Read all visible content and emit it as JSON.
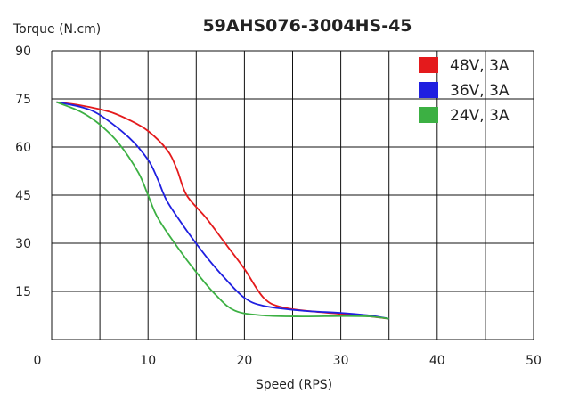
{
  "chart_data": {
    "type": "line",
    "title": "59AHS076-3004HS-45",
    "xlabel": "Speed (RPS)",
    "ylabel": "Torque (N.cm)",
    "xlim": [
      0,
      50
    ],
    "ylim": [
      0,
      90
    ],
    "x_ticks": [
      0,
      10,
      20,
      30,
      40,
      50
    ],
    "y_ticks": [
      15,
      30,
      45,
      60,
      75,
      90
    ],
    "grid": true,
    "legend_position": "top-right",
    "series": [
      {
        "name": "48V, 3A",
        "color": "#e41a1c",
        "points": [
          [
            0.5,
            74
          ],
          [
            3,
            73
          ],
          [
            6,
            71
          ],
          [
            8,
            68.5
          ],
          [
            10,
            65
          ],
          [
            12,
            59
          ],
          [
            13,
            53
          ],
          [
            14,
            45
          ],
          [
            16,
            38
          ],
          [
            18,
            30
          ],
          [
            20,
            22
          ],
          [
            22,
            13
          ],
          [
            24,
            10
          ],
          [
            28,
            8.5
          ],
          [
            32,
            7.5
          ],
          [
            35,
            6.5
          ]
        ]
      },
      {
        "name": "36V, 3A",
        "color": "#1f1fe0",
        "points": [
          [
            0.5,
            74
          ],
          [
            3,
            72.5
          ],
          [
            5,
            70
          ],
          [
            8,
            63
          ],
          [
            10,
            56
          ],
          [
            11,
            50
          ],
          [
            12,
            43
          ],
          [
            14,
            34
          ],
          [
            16,
            26
          ],
          [
            18,
            19
          ],
          [
            20,
            13
          ],
          [
            22,
            10.5
          ],
          [
            26,
            9
          ],
          [
            30,
            8.3
          ],
          [
            33,
            7.5
          ],
          [
            35,
            6.5
          ]
        ]
      },
      {
        "name": "24V, 3A",
        "color": "#3cb043",
        "points": [
          [
            0.5,
            74
          ],
          [
            3,
            71
          ],
          [
            5,
            67
          ],
          [
            7,
            61
          ],
          [
            9,
            52
          ],
          [
            10,
            45
          ],
          [
            11,
            38
          ],
          [
            13,
            29
          ],
          [
            15,
            21
          ],
          [
            17,
            14
          ],
          [
            19,
            9
          ],
          [
            22,
            7.5
          ],
          [
            26,
            7.2
          ],
          [
            30,
            7.3
          ],
          [
            33,
            7.2
          ],
          [
            35,
            6.5
          ]
        ]
      }
    ]
  }
}
